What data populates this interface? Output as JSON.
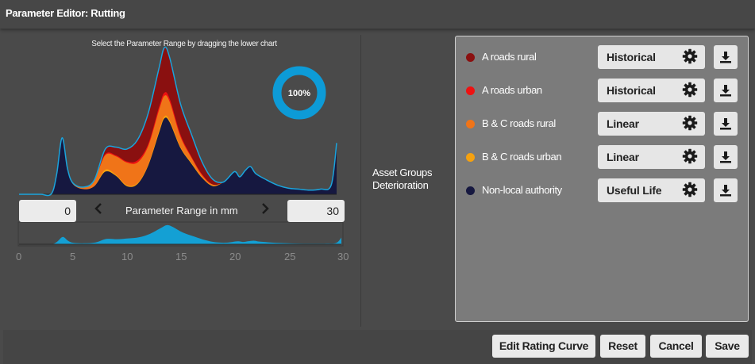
{
  "window": {
    "title": "Parameter Editor: Rutting"
  },
  "chart_hint": "Select the Parameter Range by dragging the lower chart",
  "coverage": {
    "label": "100%",
    "fraction": 1.0,
    "color": "#0d9bd7"
  },
  "range": {
    "min_value": "0",
    "max_value": "30",
    "label": "Parameter Range in mm",
    "prev_icon": "chevron-left-icon",
    "next_icon": "chevron-right-icon"
  },
  "navigator_axis": {
    "ticks": [
      "0",
      "5",
      "10",
      "15",
      "20",
      "25",
      "30"
    ]
  },
  "chart_data": {
    "type": "area",
    "stacked": true,
    "x": [
      0,
      1,
      2,
      3,
      3.5,
      4,
      4.5,
      5,
      6,
      7,
      8,
      9,
      10,
      11,
      12,
      13,
      13.5,
      14,
      15,
      16,
      17,
      18,
      19,
      20,
      20.5,
      21,
      21.5,
      22,
      23,
      24,
      25,
      26,
      27,
      28,
      29,
      29.5
    ],
    "xlim": [
      0,
      29.5
    ],
    "series": [
      {
        "name": "Non-local authority",
        "color": "#161840",
        "values": [
          0,
          0,
          0,
          0.5,
          20,
          55,
          25,
          10,
          5,
          8,
          22,
          18,
          8,
          10,
          28,
          60,
          74,
          70,
          45,
          30,
          16,
          8,
          12,
          22,
          17,
          23,
          27,
          20,
          14,
          9,
          6,
          5,
          4,
          5,
          9,
          50
        ]
      },
      {
        "name": "B & C roads urban",
        "color": "#f5a10f",
        "values": [
          0,
          0,
          0,
          0,
          0,
          0,
          0,
          0,
          0,
          0,
          2,
          1,
          1,
          1,
          1,
          2,
          2,
          2,
          1,
          1,
          0.5,
          0.5,
          0,
          0,
          0,
          0,
          0,
          0,
          0,
          0,
          0,
          0,
          0,
          0,
          0,
          0
        ]
      },
      {
        "name": "B & C roads rural",
        "color": "#f07418",
        "values": [
          0,
          0,
          0,
          0,
          0,
          0,
          0,
          1,
          2,
          6,
          14,
          18,
          22,
          20,
          18,
          20,
          20,
          18,
          10,
          5,
          2,
          1,
          0,
          0,
          0,
          0,
          0,
          0,
          0,
          0,
          0,
          0,
          0,
          0,
          0,
          0
        ]
      },
      {
        "name": "A roads urban",
        "color": "#ee1111",
        "values": [
          0,
          0,
          0,
          0,
          0,
          0,
          0,
          0,
          0,
          0,
          1,
          1,
          1,
          2,
          2,
          3,
          3,
          3,
          2,
          1,
          1,
          0,
          0,
          0,
          0,
          0,
          0,
          0,
          0,
          0,
          0,
          0,
          0,
          0,
          0,
          0
        ]
      },
      {
        "name": "A roads rural",
        "color": "#8a1010",
        "values": [
          0,
          0,
          0,
          0,
          0,
          0,
          0,
          0,
          0,
          0,
          5,
          8,
          12,
          20,
          30,
          38,
          44,
          40,
          30,
          22,
          12,
          5,
          0,
          0,
          0,
          0,
          0,
          0,
          0,
          0,
          0,
          0,
          0,
          0,
          0,
          0
        ]
      }
    ],
    "navigator": {
      "color": "#14a0d4",
      "x": [
        0,
        1,
        2,
        3,
        3.5,
        4,
        4.5,
        5,
        6,
        7,
        8,
        9,
        10,
        11,
        12,
        13,
        13.5,
        14,
        15,
        16,
        17,
        18,
        19,
        20,
        20.5,
        21,
        21.5,
        22,
        23,
        24,
        25,
        26,
        27,
        28,
        29,
        29.5
      ],
      "values": [
        0,
        0,
        0,
        0.5,
        20,
        55,
        25,
        10,
        7,
        14,
        40,
        38,
        44,
        53,
        79,
        123,
        143,
        133,
        88,
        59,
        32,
        15,
        12,
        22,
        17,
        23,
        27,
        20,
        14,
        9,
        6,
        5,
        4,
        5,
        9,
        50
      ]
    }
  },
  "asset_groups": {
    "label_line1": "Asset Groups",
    "label_line2": "Deterioration",
    "items": [
      {
        "name": "A roads rural",
        "color": "#8a1010",
        "model": "Historical",
        "settings_icon": "gear-icon",
        "download_icon": "download-icon"
      },
      {
        "name": "A roads urban",
        "color": "#ee1111",
        "model": "Historical",
        "settings_icon": "gear-icon",
        "download_icon": "download-icon"
      },
      {
        "name": "B & C roads rural",
        "color": "#f07418",
        "model": "Linear",
        "settings_icon": "gear-icon",
        "download_icon": "download-icon"
      },
      {
        "name": "B & C roads urban",
        "color": "#f5a10f",
        "model": "Linear",
        "settings_icon": "gear-icon",
        "download_icon": "download-icon"
      },
      {
        "name": "Non-local authority",
        "color": "#161840",
        "model": "Useful Life",
        "settings_icon": "gear-icon",
        "download_icon": "download-icon"
      }
    ]
  },
  "footer": {
    "edit_rating_curve": "Edit Rating Curve",
    "reset": "Reset",
    "cancel": "Cancel",
    "save": "Save"
  }
}
